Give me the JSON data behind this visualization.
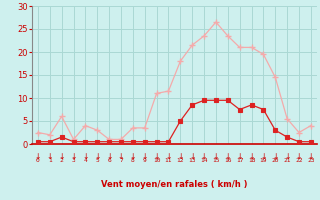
{
  "hours": [
    0,
    1,
    2,
    3,
    4,
    5,
    6,
    7,
    8,
    9,
    10,
    11,
    12,
    13,
    14,
    15,
    16,
    17,
    18,
    19,
    20,
    21,
    22,
    23
  ],
  "wind_avg": [
    0.5,
    0.5,
    1.5,
    0.5,
    0.5,
    0.5,
    0.5,
    0.5,
    0.5,
    0.5,
    0.5,
    0.5,
    5.0,
    8.5,
    9.5,
    9.5,
    9.5,
    7.5,
    8.5,
    7.5,
    3.0,
    1.5,
    0.5,
    0.5
  ],
  "wind_gust": [
    2.5,
    2.0,
    6.0,
    1.0,
    4.0,
    3.0,
    1.0,
    1.0,
    3.5,
    3.5,
    11.0,
    11.5,
    18.0,
    21.5,
    23.5,
    26.5,
    23.5,
    21.0,
    21.0,
    19.5,
    14.5,
    5.5,
    2.5,
    4.0
  ],
  "color_avg": "#dd2222",
  "color_gust": "#f4aaaa",
  "bg_color": "#cef0ee",
  "grid_color": "#aad8d4",
  "tick_color": "#cc0000",
  "xlabel": "Vent moyen/en rafales ( km/h )",
  "ylim": [
    0,
    30
  ],
  "yticks": [
    0,
    5,
    10,
    15,
    20,
    25,
    30
  ],
  "arrow_color": "#cc0000",
  "marker_avg": "s",
  "marker_gust": "D"
}
